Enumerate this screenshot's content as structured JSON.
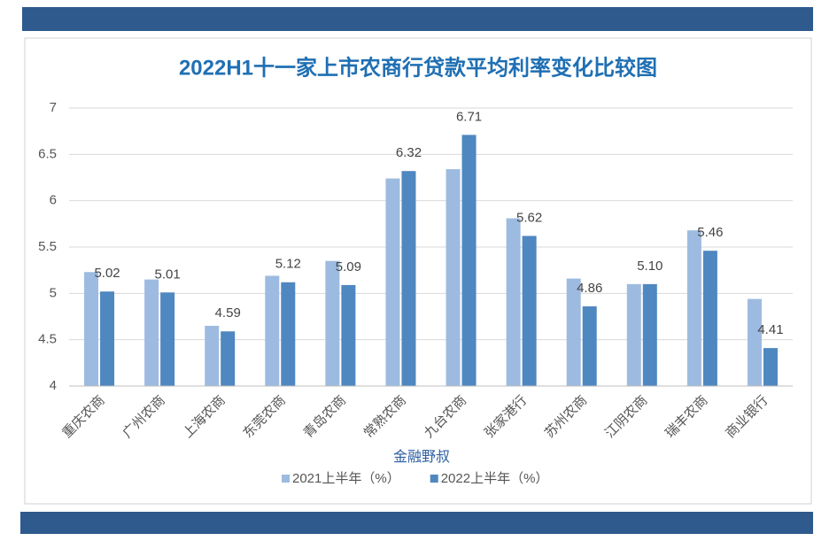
{
  "chart_data": {
    "type": "bar",
    "title": "2022H1十一家上市农商行贷款平均利率变化比较图",
    "x_label": "金融野叔",
    "categories": [
      "重庆农商",
      "广州农商",
      "上海农商",
      "东莞农商",
      "青岛农商",
      "常熟农商",
      "九台农商",
      "张家港行",
      "苏州农商",
      "江阴农商",
      "瑞丰农商",
      "商业银行"
    ],
    "series": [
      {
        "name": "2021上半年（%）",
        "color": "#9dbbe0",
        "values": [
          5.23,
          5.15,
          4.65,
          5.19,
          5.35,
          6.24,
          6.34,
          5.81,
          5.16,
          5.1,
          5.68,
          4.94
        ]
      },
      {
        "name": "2022上半年（%）",
        "color": "#4f87c0",
        "values": [
          5.02,
          5.01,
          4.59,
          5.12,
          5.09,
          6.32,
          6.71,
          5.62,
          4.86,
          5.1,
          5.46,
          4.41
        ],
        "value_labels": [
          "5.02",
          "5.01",
          "4.59",
          "5.12",
          "5.09",
          "6.32",
          "6.71",
          "5.62",
          "4.86",
          "5.10",
          "5.46",
          "4.41"
        ]
      }
    ],
    "ylim": [
      4,
      7
    ],
    "yticks": [
      4,
      4.5,
      5,
      5.5,
      6,
      6.5,
      7
    ],
    "grid": true,
    "legend": "bottom"
  }
}
